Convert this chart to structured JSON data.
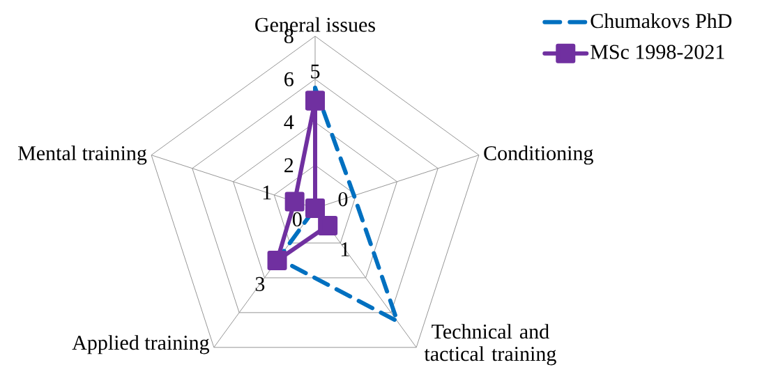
{
  "chart_data": {
    "type": "radar",
    "categories": [
      "General issues",
      "Conditioning",
      "Technical and tactical training",
      "Applied training",
      "Mental training"
    ],
    "ylim": [
      0,
      8
    ],
    "yticks": [
      0,
      2,
      4,
      6,
      8
    ],
    "series": [
      {
        "name": "Chumakovs PhD",
        "color": "#0070c0",
        "values": [
          5.6,
          1.9,
          6.5,
          2.9,
          0
        ],
        "line_style": "dashed",
        "marker": "none"
      },
      {
        "name": "MSc 1998-2021",
        "color": "#7030a0",
        "values": [
          5,
          0,
          1,
          3,
          1
        ],
        "line_style": "solid",
        "marker": "square",
        "value_labels": [
          "5",
          "0",
          "1",
          "3",
          "1"
        ]
      }
    ],
    "grid": true,
    "legend": "top right"
  }
}
